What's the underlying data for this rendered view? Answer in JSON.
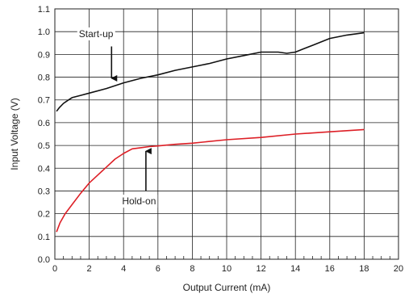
{
  "chart_data": {
    "type": "line",
    "title": "",
    "xlabel": "Output Current (mA)",
    "ylabel": "Input Voltage (V)",
    "xlim": [
      0,
      20
    ],
    "ylim": [
      0.0,
      1.1
    ],
    "x_ticks": [
      0,
      2,
      4,
      6,
      8,
      10,
      12,
      14,
      16,
      18,
      20
    ],
    "y_ticks": [
      "0.0",
      "0.1",
      "0.2",
      "0.3",
      "0.4",
      "0.5",
      "0.6",
      "0.7",
      "0.8",
      "0.9",
      "1.0",
      "1.1"
    ],
    "x_minor_step": 0.5,
    "grid": true,
    "series": [
      {
        "name": "Start-up",
        "color": "#111111",
        "x": [
          0.1,
          0.25,
          0.5,
          0.8,
          1.0,
          1.5,
          2.0,
          3.0,
          4.0,
          5.0,
          6.0,
          7.0,
          8.0,
          9.0,
          10.0,
          11.0,
          12.0,
          13.0,
          13.5,
          14.0,
          14.5,
          15.0,
          16.0,
          17.0,
          18.0
        ],
        "values": [
          0.65,
          0.665,
          0.685,
          0.7,
          0.71,
          0.72,
          0.73,
          0.75,
          0.775,
          0.795,
          0.81,
          0.83,
          0.845,
          0.86,
          0.88,
          0.895,
          0.91,
          0.91,
          0.905,
          0.91,
          0.925,
          0.94,
          0.97,
          0.985,
          0.995
        ]
      },
      {
        "name": "Hold-on",
        "color": "#dd1f26",
        "x": [
          0.1,
          0.3,
          0.6,
          1.0,
          1.5,
          2.0,
          2.5,
          3.0,
          3.5,
          4.0,
          4.5,
          5.0,
          5.5,
          6.0,
          7.0,
          8.0,
          10.0,
          12.0,
          14.0,
          16.0,
          18.0
        ],
        "values": [
          0.12,
          0.16,
          0.2,
          0.24,
          0.29,
          0.335,
          0.37,
          0.405,
          0.44,
          0.465,
          0.485,
          0.49,
          0.495,
          0.498,
          0.505,
          0.51,
          0.525,
          0.535,
          0.55,
          0.56,
          0.57
        ]
      }
    ],
    "annotations": [
      {
        "text": "Start-up",
        "target_x": 3.3,
        "target_y": 0.775
      },
      {
        "text": "Hold-on",
        "target_x": 5.3,
        "target_y": 0.495
      }
    ]
  }
}
